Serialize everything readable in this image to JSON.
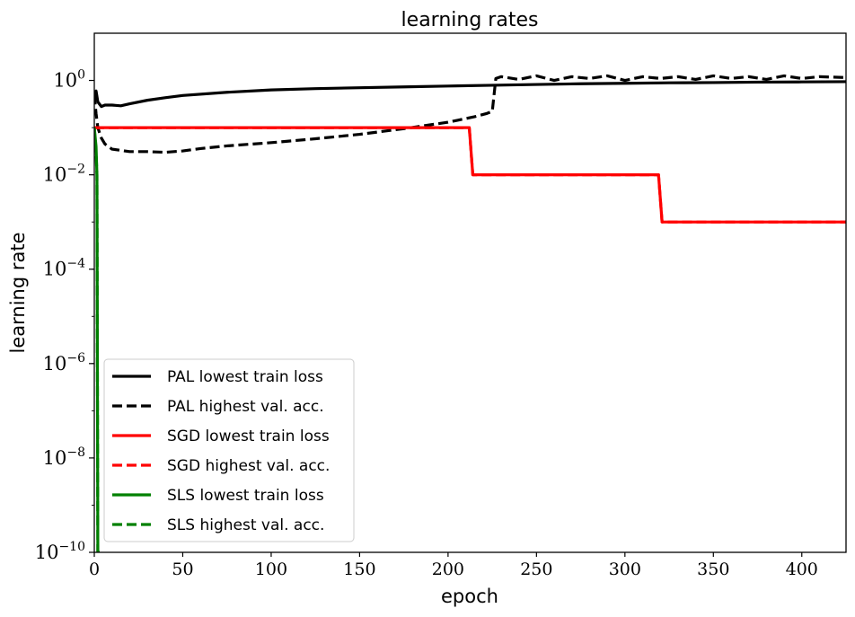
{
  "chart_data": {
    "type": "line",
    "title": "learning rates",
    "xlabel": "epoch",
    "ylabel": "learning rate",
    "y_scale": "log",
    "xlim": [
      0,
      425
    ],
    "ylim": [
      1e-10,
      10
    ],
    "x_ticks": [
      0,
      50,
      100,
      150,
      200,
      250,
      300,
      350,
      400
    ],
    "y_ticks": [
      {
        "value": 1.0,
        "base": "10",
        "exp": "0"
      },
      {
        "value": 0.01,
        "base": "10",
        "exp": "−2"
      },
      {
        "value": 0.0001,
        "base": "10",
        "exp": "−4"
      },
      {
        "value": 1e-06,
        "base": "10",
        "exp": "−6"
      },
      {
        "value": 1e-08,
        "base": "10",
        "exp": "−8"
      },
      {
        "value": 1e-10,
        "base": "10",
        "exp": "−10"
      }
    ],
    "grid": false,
    "legend_position": "bottom-left",
    "series": [
      {
        "name": "PAL lowest train loss",
        "color": "#000000",
        "style": "solid",
        "points": [
          [
            0,
            0.4
          ],
          [
            1,
            0.6
          ],
          [
            2,
            0.35
          ],
          [
            4,
            0.28
          ],
          [
            6,
            0.3
          ],
          [
            10,
            0.3
          ],
          [
            15,
            0.29
          ],
          [
            20,
            0.32
          ],
          [
            30,
            0.38
          ],
          [
            40,
            0.43
          ],
          [
            50,
            0.48
          ],
          [
            75,
            0.56
          ],
          [
            100,
            0.63
          ],
          [
            125,
            0.67
          ],
          [
            150,
            0.7
          ],
          [
            175,
            0.73
          ],
          [
            200,
            0.76
          ],
          [
            225,
            0.79
          ],
          [
            250,
            0.82
          ],
          [
            275,
            0.85
          ],
          [
            300,
            0.87
          ],
          [
            325,
            0.89
          ],
          [
            350,
            0.9
          ],
          [
            375,
            0.92
          ],
          [
            400,
            0.93
          ],
          [
            425,
            0.94
          ]
        ]
      },
      {
        "name": "PAL highest val. acc.",
        "color": "#000000",
        "style": "dashed",
        "points": [
          [
            0,
            0.5
          ],
          [
            1,
            0.2
          ],
          [
            2,
            0.1
          ],
          [
            4,
            0.06
          ],
          [
            6,
            0.045
          ],
          [
            10,
            0.035
          ],
          [
            20,
            0.031
          ],
          [
            30,
            0.031
          ],
          [
            40,
            0.03
          ],
          [
            50,
            0.032
          ],
          [
            60,
            0.036
          ],
          [
            75,
            0.041
          ],
          [
            100,
            0.048
          ],
          [
            125,
            0.058
          ],
          [
            150,
            0.072
          ],
          [
            175,
            0.095
          ],
          [
            200,
            0.13
          ],
          [
            215,
            0.17
          ],
          [
            222,
            0.2
          ],
          [
            225,
            0.22
          ],
          [
            227,
            1.1
          ],
          [
            230,
            1.2
          ],
          [
            240,
            1.05
          ],
          [
            250,
            1.25
          ],
          [
            260,
            1.0
          ],
          [
            270,
            1.2
          ],
          [
            280,
            1.1
          ],
          [
            290,
            1.25
          ],
          [
            300,
            1.0
          ],
          [
            310,
            1.2
          ],
          [
            320,
            1.1
          ],
          [
            330,
            1.2
          ],
          [
            340,
            1.05
          ],
          [
            350,
            1.25
          ],
          [
            360,
            1.1
          ],
          [
            370,
            1.2
          ],
          [
            380,
            1.05
          ],
          [
            390,
            1.25
          ],
          [
            400,
            1.1
          ],
          [
            410,
            1.2
          ],
          [
            425,
            1.15
          ]
        ]
      },
      {
        "name": "SGD lowest train loss",
        "color": "#ff0000",
        "style": "solid",
        "points": [
          [
            0,
            0.1
          ],
          [
            212,
            0.1
          ],
          [
            214,
            0.01
          ],
          [
            319,
            0.01
          ],
          [
            321,
            0.001
          ],
          [
            425,
            0.001
          ]
        ]
      },
      {
        "name": "SGD highest val. acc.",
        "color": "#ff0000",
        "style": "dashed",
        "points": [
          [
            0,
            0.1
          ],
          [
            212,
            0.1
          ],
          [
            214,
            0.01
          ],
          [
            319,
            0.01
          ],
          [
            321,
            0.001
          ],
          [
            425,
            0.001
          ]
        ]
      },
      {
        "name": "SLS lowest train loss",
        "color": "#008000",
        "style": "solid",
        "points": [
          [
            0,
            0.1
          ],
          [
            1,
            0.04
          ],
          [
            1.5,
            0.01
          ],
          [
            2,
            1e-10
          ],
          [
            3,
            1e-10
          ]
        ]
      },
      {
        "name": "SLS highest val. acc.",
        "color": "#008000",
        "style": "dashed",
        "points": [
          [
            0,
            0.1
          ],
          [
            1,
            0.03
          ],
          [
            1.5,
            0.01
          ],
          [
            2,
            1e-10
          ],
          [
            3,
            1e-10
          ]
        ]
      }
    ]
  }
}
